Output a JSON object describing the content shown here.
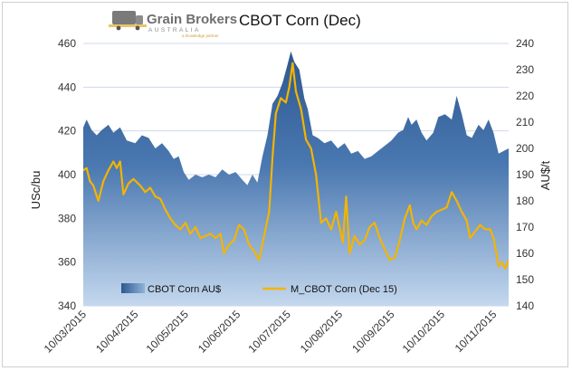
{
  "brand": {
    "name": "Grain Brokers",
    "sub": "AUSTRALIA",
    "tagline": "a knowledge partner"
  },
  "chart_data": {
    "type": "area",
    "title": "CBOT Corn (Dec)",
    "ylabel_left": "USc/bu",
    "ylabel_right": "AU$/t",
    "ylim_left": [
      340,
      460
    ],
    "ylim_right": [
      140,
      240
    ],
    "yticks_left": [
      "340",
      "360",
      "380",
      "400",
      "420",
      "440",
      "460"
    ],
    "yticks_right": [
      "140",
      "150",
      "160",
      "170",
      "180",
      "190",
      "200",
      "210",
      "220",
      "230",
      "240"
    ],
    "x_start": "2015-03-10",
    "x_end": "2015-11-19",
    "x_tick_labels": [
      "10/03/2015",
      "10/04/2015",
      "10/05/2015",
      "10/06/2015",
      "10/07/2015",
      "10/08/2015",
      "10/09/2015",
      "10/10/2015",
      "10/11/2015"
    ],
    "grid": true,
    "legend_position": "bottom-left",
    "colors": {
      "area_top": "#2d5890",
      "area_bottom": "#c4d8ee",
      "line": "#f4b400",
      "grid": "#cdd9e8"
    },
    "series": [
      {
        "name": "CBOT Corn AU$",
        "axis": "right",
        "kind": "area",
        "points": [
          [
            "2015-03-10",
            208
          ],
          [
            "2015-03-12",
            211
          ],
          [
            "2015-03-15",
            207
          ],
          [
            "2015-03-18",
            205
          ],
          [
            "2015-03-21",
            207
          ],
          [
            "2015-03-25",
            209
          ],
          [
            "2015-03-28",
            206
          ],
          [
            "2015-04-01",
            208
          ],
          [
            "2015-04-05",
            203
          ],
          [
            "2015-04-10",
            202
          ],
          [
            "2015-04-14",
            205
          ],
          [
            "2015-04-18",
            204
          ],
          [
            "2015-04-22",
            200
          ],
          [
            "2015-04-26",
            202
          ],
          [
            "2015-04-30",
            199
          ],
          [
            "2015-05-03",
            196
          ],
          [
            "2015-05-06",
            197
          ],
          [
            "2015-05-09",
            191
          ],
          [
            "2015-05-12",
            188
          ],
          [
            "2015-05-16",
            190
          ],
          [
            "2015-05-20",
            189
          ],
          [
            "2015-05-24",
            190
          ],
          [
            "2015-05-28",
            189
          ],
          [
            "2015-06-01",
            192
          ],
          [
            "2015-06-05",
            190
          ],
          [
            "2015-06-09",
            191
          ],
          [
            "2015-06-13",
            188
          ],
          [
            "2015-06-16",
            186
          ],
          [
            "2015-06-19",
            190
          ],
          [
            "2015-06-22",
            187
          ],
          [
            "2015-06-25",
            197
          ],
          [
            "2015-06-28",
            205
          ],
          [
            "2015-07-01",
            217
          ],
          [
            "2015-07-04",
            220
          ],
          [
            "2015-07-07",
            225
          ],
          [
            "2015-07-10",
            232
          ],
          [
            "2015-07-12",
            237
          ],
          [
            "2015-07-14",
            233
          ],
          [
            "2015-07-17",
            230
          ],
          [
            "2015-07-20",
            219
          ],
          [
            "2015-07-22",
            215
          ],
          [
            "2015-07-25",
            205
          ],
          [
            "2015-07-28",
            204
          ],
          [
            "2015-08-01",
            202
          ],
          [
            "2015-08-05",
            203
          ],
          [
            "2015-08-09",
            200
          ],
          [
            "2015-08-13",
            202
          ],
          [
            "2015-08-17",
            198
          ],
          [
            "2015-08-21",
            199
          ],
          [
            "2015-08-25",
            196
          ],
          [
            "2015-08-29",
            197
          ],
          [
            "2015-09-02",
            199
          ],
          [
            "2015-09-06",
            201
          ],
          [
            "2015-09-10",
            203
          ],
          [
            "2015-09-14",
            206
          ],
          [
            "2015-09-17",
            207
          ],
          [
            "2015-09-20",
            212
          ],
          [
            "2015-09-22",
            209
          ],
          [
            "2015-09-25",
            211
          ],
          [
            "2015-09-28",
            206
          ],
          [
            "2015-10-01",
            203
          ],
          [
            "2015-10-05",
            206
          ],
          [
            "2015-10-08",
            212
          ],
          [
            "2015-10-12",
            213
          ],
          [
            "2015-10-16",
            211
          ],
          [
            "2015-10-19",
            220
          ],
          [
            "2015-10-22",
            213
          ],
          [
            "2015-10-25",
            205
          ],
          [
            "2015-10-28",
            204
          ],
          [
            "2015-11-01",
            209
          ],
          [
            "2015-11-04",
            207
          ],
          [
            "2015-11-07",
            211
          ],
          [
            "2015-11-10",
            206
          ],
          [
            "2015-11-13",
            198
          ],
          [
            "2015-11-16",
            199
          ],
          [
            "2015-11-19",
            200
          ]
        ]
      },
      {
        "name": "M_CBOT Corn (Dec 15)",
        "axis": "left",
        "kind": "line",
        "points": [
          [
            "2015-03-10",
            402
          ],
          [
            "2015-03-12",
            403
          ],
          [
            "2015-03-14",
            397
          ],
          [
            "2015-03-16",
            395
          ],
          [
            "2015-03-19",
            388
          ],
          [
            "2015-03-22",
            397
          ],
          [
            "2015-03-25",
            402
          ],
          [
            "2015-03-28",
            406
          ],
          [
            "2015-03-30",
            403
          ],
          [
            "2015-04-01",
            406
          ],
          [
            "2015-04-03",
            391
          ],
          [
            "2015-04-06",
            396
          ],
          [
            "2015-04-09",
            398
          ],
          [
            "2015-04-13",
            395
          ],
          [
            "2015-04-16",
            392
          ],
          [
            "2015-04-19",
            394
          ],
          [
            "2015-04-22",
            390
          ],
          [
            "2015-04-25",
            389
          ],
          [
            "2015-04-28",
            384
          ],
          [
            "2015-05-01",
            380
          ],
          [
            "2015-05-04",
            377
          ],
          [
            "2015-05-07",
            375
          ],
          [
            "2015-05-10",
            378
          ],
          [
            "2015-05-13",
            373
          ],
          [
            "2015-05-16",
            376
          ],
          [
            "2015-05-19",
            371
          ],
          [
            "2015-05-22",
            372
          ],
          [
            "2015-05-25",
            373
          ],
          [
            "2015-05-28",
            371
          ],
          [
            "2015-05-31",
            373
          ],
          [
            "2015-06-02",
            364
          ],
          [
            "2015-06-05",
            368
          ],
          [
            "2015-06-08",
            370
          ],
          [
            "2015-06-11",
            377
          ],
          [
            "2015-06-14",
            375
          ],
          [
            "2015-06-17",
            368
          ],
          [
            "2015-06-20",
            365
          ],
          [
            "2015-06-23",
            361
          ],
          [
            "2015-06-26",
            372
          ],
          [
            "2015-06-29",
            383
          ],
          [
            "2015-07-01",
            408
          ],
          [
            "2015-07-03",
            428
          ],
          [
            "2015-07-06",
            435
          ],
          [
            "2015-07-09",
            433
          ],
          [
            "2015-07-11",
            440
          ],
          [
            "2015-07-13",
            451
          ],
          [
            "2015-07-15",
            438
          ],
          [
            "2015-07-18",
            430
          ],
          [
            "2015-07-21",
            416
          ],
          [
            "2015-07-24",
            412
          ],
          [
            "2015-07-27",
            400
          ],
          [
            "2015-07-30",
            378
          ],
          [
            "2015-08-02",
            380
          ],
          [
            "2015-08-05",
            375
          ],
          [
            "2015-08-08",
            383
          ],
          [
            "2015-08-10",
            376
          ],
          [
            "2015-08-12",
            369
          ],
          [
            "2015-08-14",
            390
          ],
          [
            "2015-08-16",
            364
          ],
          [
            "2015-08-19",
            372
          ],
          [
            "2015-08-22",
            368
          ],
          [
            "2015-08-25",
            370
          ],
          [
            "2015-08-28",
            376
          ],
          [
            "2015-08-31",
            378
          ],
          [
            "2015-09-03",
            371
          ],
          [
            "2015-09-06",
            366
          ],
          [
            "2015-09-09",
            361
          ],
          [
            "2015-09-12",
            362
          ],
          [
            "2015-09-15",
            370
          ],
          [
            "2015-09-18",
            380
          ],
          [
            "2015-09-21",
            386
          ],
          [
            "2015-09-23",
            378
          ],
          [
            "2015-09-25",
            375
          ],
          [
            "2015-09-28",
            379
          ],
          [
            "2015-10-01",
            377
          ],
          [
            "2015-10-04",
            381
          ],
          [
            "2015-10-07",
            383
          ],
          [
            "2015-10-10",
            384
          ],
          [
            "2015-10-13",
            385
          ],
          [
            "2015-10-16",
            392
          ],
          [
            "2015-10-19",
            388
          ],
          [
            "2015-10-22",
            383
          ],
          [
            "2015-10-25",
            379
          ],
          [
            "2015-10-27",
            371
          ],
          [
            "2015-10-30",
            374
          ],
          [
            "2015-11-02",
            377
          ],
          [
            "2015-11-05",
            375
          ],
          [
            "2015-11-08",
            375
          ],
          [
            "2015-11-10",
            371
          ],
          [
            "2015-11-12",
            363
          ],
          [
            "2015-11-13",
            358
          ],
          [
            "2015-11-15",
            360
          ],
          [
            "2015-11-17",
            357
          ],
          [
            "2015-11-19",
            361
          ]
        ]
      }
    ]
  }
}
